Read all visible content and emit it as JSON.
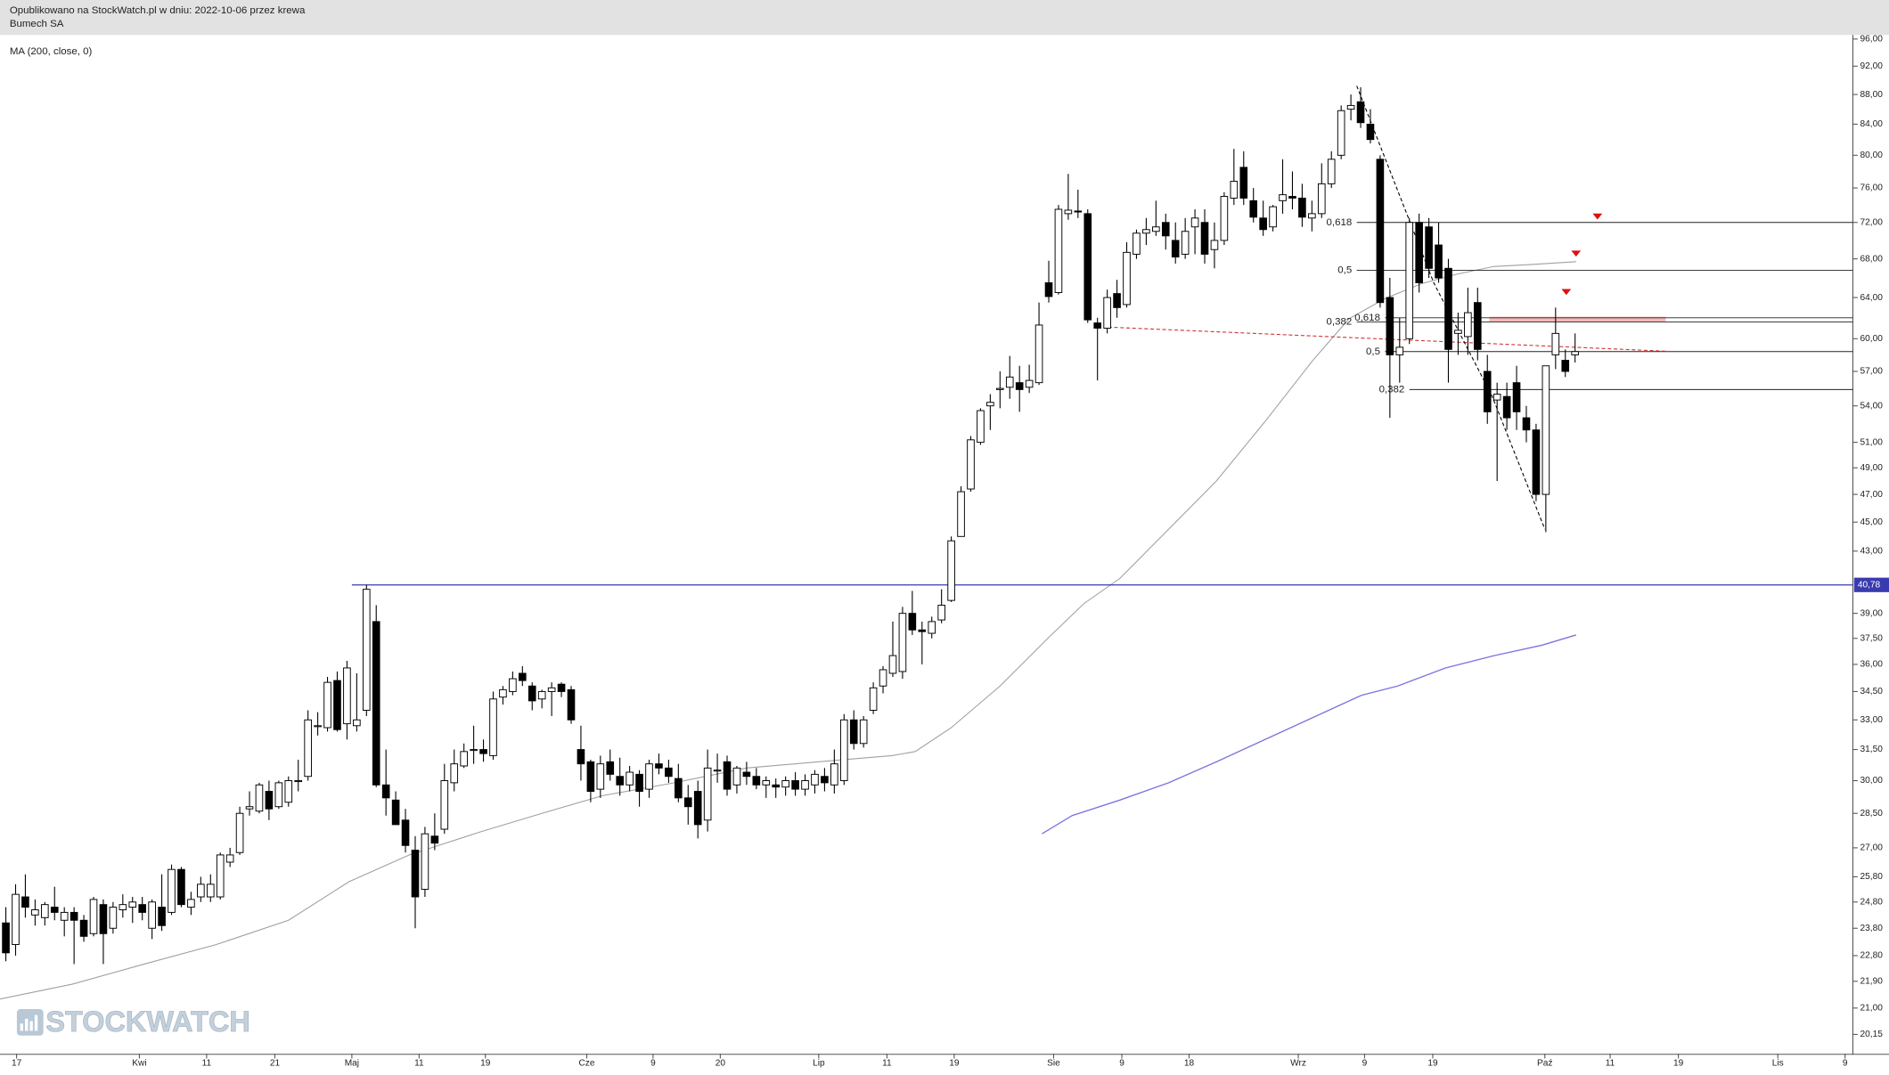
{
  "chart_data": {
    "type": "candlestick",
    "title": "Opublikowano na StockWatch.pl w dniu: 2022-10-06 przez krewa",
    "subtitle": "Bumech SA",
    "watermark": "STOCKWATCH",
    "log_scale": true,
    "up_color": "#ffffff",
    "down_color": "#000000",
    "xlim": [
      -0.6,
      189.5
    ],
    "ylim": [
      19.55,
      96.8
    ],
    "xticks": [
      {
        "value": 1.1,
        "label": "17"
      },
      {
        "value": 13.7,
        "label": "Kwi"
      },
      {
        "value": 20.6,
        "label": "11"
      },
      {
        "value": 27.6,
        "label": "21"
      },
      {
        "value": 35.5,
        "label": "Maj"
      },
      {
        "value": 42.4,
        "label": "11"
      },
      {
        "value": 49.2,
        "label": "19"
      },
      {
        "value": 59.6,
        "label": "Cze"
      },
      {
        "value": 66.4,
        "label": "9"
      },
      {
        "value": 73.3,
        "label": "20"
      },
      {
        "value": 83.4,
        "label": "Lip"
      },
      {
        "value": 90.4,
        "label": "11"
      },
      {
        "value": 97.3,
        "label": "19"
      },
      {
        "value": 107.5,
        "label": "Sie"
      },
      {
        "value": 114.5,
        "label": "9"
      },
      {
        "value": 121.4,
        "label": "18"
      },
      {
        "value": 132.6,
        "label": "Wrz"
      },
      {
        "value": 139.4,
        "label": "9"
      },
      {
        "value": 146.4,
        "label": "19"
      },
      {
        "value": 157.9,
        "label": "Paź"
      },
      {
        "value": 164.6,
        "label": "11"
      },
      {
        "value": 171.6,
        "label": "19"
      },
      {
        "value": 181.8,
        "label": "Lis"
      },
      {
        "value": 188.7,
        "label": "9"
      }
    ],
    "yticks": [
      {
        "value": 96,
        "label": "96,00"
      },
      {
        "value": 92,
        "label": "92,00"
      },
      {
        "value": 88,
        "label": "88,00"
      },
      {
        "value": 84,
        "label": "84,00"
      },
      {
        "value": 80,
        "label": "80,00"
      },
      {
        "value": 76,
        "label": "76,00"
      },
      {
        "value": 72,
        "label": "72,00"
      },
      {
        "value": 68,
        "label": "68,00"
      },
      {
        "value": 64,
        "label": "64,00"
      },
      {
        "value": 60,
        "label": "60,00"
      },
      {
        "value": 57,
        "label": "57,00"
      },
      {
        "value": 54,
        "label": "54,00"
      },
      {
        "value": 51,
        "label": "51,00"
      },
      {
        "value": 49,
        "label": "49,00"
      },
      {
        "value": 47,
        "label": "47,00"
      },
      {
        "value": 45,
        "label": "45,00"
      },
      {
        "value": 43,
        "label": "43,00"
      },
      {
        "value": 39,
        "label": "39,00"
      },
      {
        "value": 37.5,
        "label": "37,50"
      },
      {
        "value": 36,
        "label": "36,00"
      },
      {
        "value": 34.5,
        "label": "34,50"
      },
      {
        "value": 33,
        "label": "33,00"
      },
      {
        "value": 31.5,
        "label": "31,50"
      },
      {
        "value": 30,
        "label": "30,00"
      },
      {
        "value": 28.5,
        "label": "28,50"
      },
      {
        "value": 27,
        "label": "27,00"
      },
      {
        "value": 25.8,
        "label": "25,80"
      },
      {
        "value": 24.8,
        "label": "24,80"
      },
      {
        "value": 23.8,
        "label": "23,80"
      },
      {
        "value": 22.8,
        "label": "22,80"
      },
      {
        "value": 21.9,
        "label": "21,90"
      },
      {
        "value": 21,
        "label": "21,00"
      },
      {
        "value": 20.15,
        "label": "20,15"
      }
    ],
    "candles": [
      [
        24.0,
        24.6,
        22.6,
        22.9
      ],
      [
        23.2,
        25.5,
        22.8,
        25.1
      ],
      [
        25.0,
        25.9,
        24.2,
        24.6
      ],
      [
        24.3,
        24.9,
        23.9,
        24.5
      ],
      [
        24.2,
        24.8,
        23.9,
        24.7
      ],
      [
        24.6,
        25.4,
        24.1,
        24.4
      ],
      [
        24.1,
        24.6,
        23.5,
        24.4
      ],
      [
        24.4,
        24.6,
        22.5,
        24.1
      ],
      [
        24.1,
        24.3,
        23.3,
        23.5
      ],
      [
        23.6,
        25.0,
        23.5,
        24.9
      ],
      [
        24.7,
        24.9,
        22.5,
        23.6
      ],
      [
        23.8,
        24.8,
        23.6,
        24.6
      ],
      [
        24.5,
        25.1,
        24.2,
        24.7
      ],
      [
        24.6,
        25.0,
        24.0,
        24.8
      ],
      [
        24.7,
        25.0,
        24.1,
        24.4
      ],
      [
        23.8,
        24.9,
        23.4,
        24.8
      ],
      [
        24.6,
        25.9,
        23.7,
        23.9
      ],
      [
        24.4,
        26.3,
        24.3,
        26.1
      ],
      [
        26.1,
        26.2,
        24.6,
        24.7
      ],
      [
        24.6,
        25.2,
        24.3,
        24.9
      ],
      [
        25.0,
        25.8,
        24.8,
        25.5
      ],
      [
        25.0,
        25.9,
        24.8,
        25.5
      ],
      [
        25.0,
        26.8,
        24.9,
        26.7
      ],
      [
        26.4,
        27.0,
        26.2,
        26.7
      ],
      [
        26.8,
        28.8,
        26.7,
        28.5
      ],
      [
        28.7,
        29.5,
        28.4,
        28.8
      ],
      [
        28.6,
        29.9,
        28.5,
        29.8
      ],
      [
        29.5,
        30.0,
        28.2,
        28.7
      ],
      [
        28.8,
        30.0,
        28.7,
        29.9
      ],
      [
        29.0,
        30.2,
        28.8,
        30.0
      ],
      [
        30.0,
        31.0,
        29.5,
        30.0
      ],
      [
        30.2,
        33.5,
        30.0,
        33.0
      ],
      [
        32.7,
        33.4,
        32.2,
        32.7
      ],
      [
        32.6,
        35.3,
        32.4,
        35.0
      ],
      [
        35.1,
        35.6,
        32.4,
        32.5
      ],
      [
        32.8,
        36.2,
        32.0,
        35.8
      ],
      [
        32.7,
        35.5,
        32.4,
        33.0
      ],
      [
        33.5,
        40.78,
        33.2,
        40.5
      ],
      [
        38.5,
        39.5,
        29.7,
        29.8
      ],
      [
        29.8,
        31.5,
        28.4,
        29.2
      ],
      [
        29.1,
        29.5,
        28.0,
        28.0
      ],
      [
        28.2,
        28.7,
        26.8,
        27.1
      ],
      [
        26.9,
        27.5,
        23.8,
        25.0
      ],
      [
        25.3,
        27.9,
        25.0,
        27.6
      ],
      [
        27.5,
        28.5,
        26.9,
        27.2
      ],
      [
        27.8,
        30.8,
        27.6,
        30.0
      ],
      [
        29.9,
        31.5,
        29.5,
        30.8
      ],
      [
        30.7,
        31.8,
        30.6,
        31.4
      ],
      [
        31.5,
        32.7,
        30.8,
        31.5
      ],
      [
        31.5,
        32.0,
        30.9,
        31.3
      ],
      [
        31.2,
        34.5,
        31.0,
        34.1
      ],
      [
        34.2,
        34.8,
        33.8,
        34.6
      ],
      [
        34.5,
        35.6,
        34.3,
        35.2
      ],
      [
        35.5,
        35.9,
        34.8,
        35.1
      ],
      [
        34.8,
        35.0,
        33.5,
        34.0
      ],
      [
        34.1,
        34.6,
        33.6,
        34.5
      ],
      [
        34.5,
        35.0,
        33.2,
        34.7
      ],
      [
        34.9,
        35.0,
        34.2,
        34.5
      ],
      [
        34.6,
        34.8,
        32.8,
        33.0
      ],
      [
        31.5,
        32.7,
        30.0,
        30.8
      ],
      [
        30.9,
        31.0,
        29.0,
        29.5
      ],
      [
        29.6,
        31.2,
        29.2,
        30.8
      ],
      [
        30.9,
        31.5,
        30.0,
        30.3
      ],
      [
        30.2,
        31.1,
        29.3,
        29.8
      ],
      [
        29.8,
        30.7,
        29.5,
        30.4
      ],
      [
        30.3,
        30.5,
        28.8,
        29.5
      ],
      [
        29.6,
        31.0,
        29.2,
        30.8
      ],
      [
        30.8,
        31.3,
        30.3,
        30.6
      ],
      [
        30.6,
        31.0,
        29.9,
        30.2
      ],
      [
        30.1,
        30.8,
        29.0,
        29.2
      ],
      [
        29.2,
        29.8,
        28.0,
        28.8
      ],
      [
        29.5,
        30.0,
        27.4,
        28.0
      ],
      [
        28.2,
        31.5,
        27.7,
        30.6
      ],
      [
        30.5,
        31.3,
        29.9,
        30.5
      ],
      [
        30.9,
        31.2,
        29.3,
        29.6
      ],
      [
        29.8,
        30.7,
        29.4,
        30.6
      ],
      [
        30.4,
        30.9,
        29.8,
        30.2
      ],
      [
        30.2,
        30.6,
        29.6,
        29.8
      ],
      [
        29.8,
        30.2,
        29.2,
        30.0
      ],
      [
        29.8,
        30.1,
        29.2,
        29.7
      ],
      [
        29.7,
        30.2,
        29.3,
        30.0
      ],
      [
        30.0,
        30.4,
        29.3,
        29.6
      ],
      [
        29.6,
        30.3,
        29.3,
        30.0
      ],
      [
        29.8,
        30.5,
        29.4,
        30.3
      ],
      [
        30.2,
        30.6,
        29.5,
        29.9
      ],
      [
        29.8,
        31.5,
        29.4,
        30.8
      ],
      [
        30.0,
        33.3,
        29.8,
        33.0
      ],
      [
        33.0,
        33.5,
        31.5,
        31.8
      ],
      [
        31.8,
        33.2,
        31.6,
        33.0
      ],
      [
        33.5,
        35.0,
        33.3,
        34.7
      ],
      [
        34.8,
        35.9,
        34.4,
        35.7
      ],
      [
        35.5,
        38.5,
        35.3,
        36.5
      ],
      [
        35.6,
        39.4,
        35.2,
        39.0
      ],
      [
        39.0,
        40.4,
        37.7,
        38.0
      ],
      [
        38.0,
        38.5,
        36.0,
        37.9
      ],
      [
        37.8,
        38.8,
        37.5,
        38.5
      ],
      [
        38.6,
        40.5,
        38.4,
        39.5
      ],
      [
        39.8,
        44.0,
        39.7,
        43.7
      ],
      [
        44.0,
        47.6,
        44.0,
        47.2
      ],
      [
        47.4,
        51.5,
        47.2,
        51.2
      ],
      [
        51.0,
        53.8,
        50.8,
        53.6
      ],
      [
        54.0,
        55.0,
        52.0,
        54.3
      ],
      [
        55.4,
        57.0,
        53.8,
        55.5
      ],
      [
        55.6,
        58.4,
        54.6,
        56.5
      ],
      [
        56.0,
        57.5,
        53.5,
        55.4
      ],
      [
        55.6,
        57.6,
        55.1,
        56.2
      ],
      [
        56.0,
        63.5,
        55.8,
        61.3
      ],
      [
        65.5,
        67.8,
        63.5,
        64.1
      ],
      [
        64.5,
        74.0,
        64.3,
        73.5
      ],
      [
        73.0,
        77.7,
        72.3,
        73.4
      ],
      [
        73.3,
        75.8,
        72.5,
        73.2
      ],
      [
        73.0,
        73.5,
        61.5,
        61.8
      ],
      [
        61.5,
        62.0,
        56.2,
        61.0
      ],
      [
        61.0,
        64.8,
        60.5,
        64.0
      ],
      [
        64.4,
        65.8,
        62.0,
        63.0
      ],
      [
        63.3,
        69.8,
        63.0,
        68.7
      ],
      [
        68.5,
        71.2,
        68.0,
        70.8
      ],
      [
        70.8,
        72.5,
        69.5,
        71.2
      ],
      [
        71.0,
        74.5,
        70.5,
        71.5
      ],
      [
        72.0,
        73.0,
        69.0,
        70.5
      ],
      [
        70.0,
        72.0,
        67.5,
        68.2
      ],
      [
        68.5,
        72.5,
        68.0,
        71.0
      ],
      [
        71.5,
        73.5,
        68.5,
        72.5
      ],
      [
        72.0,
        73.5,
        67.5,
        68.5
      ],
      [
        69.0,
        72.0,
        67.0,
        70.0
      ],
      [
        70.0,
        75.5,
        69.5,
        75.0
      ],
      [
        74.8,
        80.8,
        74.0,
        76.8
      ],
      [
        78.5,
        80.5,
        74.0,
        74.8
      ],
      [
        74.5,
        76.0,
        72.0,
        72.6
      ],
      [
        72.5,
        74.5,
        70.5,
        71.2
      ],
      [
        71.5,
        74.0,
        71.0,
        73.8
      ],
      [
        74.5,
        79.5,
        73.0,
        75.2
      ],
      [
        75.0,
        78.0,
        73.5,
        74.8
      ],
      [
        74.8,
        76.5,
        71.5,
        72.6
      ],
      [
        72.5,
        74.5,
        71.0,
        73.0
      ],
      [
        73.0,
        79.0,
        72.5,
        76.5
      ],
      [
        76.5,
        80.5,
        76.0,
        79.5
      ],
      [
        80.0,
        86.5,
        79.5,
        85.8
      ],
      [
        86.0,
        88.0,
        84.5,
        86.5
      ],
      [
        87.0,
        89.0,
        83.5,
        84.2
      ],
      [
        84.0,
        86.0,
        81.5,
        82.0
      ],
      [
        79.5,
        80.0,
        63.0,
        63.5
      ],
      [
        64.0,
        66.0,
        53.0,
        58.5
      ],
      [
        58.5,
        62.0,
        56.0,
        59.2
      ],
      [
        60.0,
        72.5,
        59.5,
        72.0
      ],
      [
        72.0,
        73.0,
        64.5,
        65.5
      ],
      [
        71.5,
        72.5,
        66.0,
        67.0
      ],
      [
        69.5,
        72.0,
        65.5,
        66.0
      ],
      [
        67.0,
        68.0,
        56.0,
        59.0
      ],
      [
        60.5,
        62.5,
        58.5,
        60.8
      ],
      [
        60.2,
        65.0,
        58.5,
        62.5
      ],
      [
        63.5,
        65.0,
        58.0,
        59.0
      ],
      [
        57.0,
        58.5,
        52.5,
        53.5
      ],
      [
        54.5,
        56.0,
        48.0,
        55.0
      ],
      [
        54.8,
        56.0,
        52.0,
        53.0
      ],
      [
        56.0,
        57.5,
        52.0,
        53.5
      ],
      [
        53.0,
        54.0,
        51.0,
        52.0
      ],
      [
        52.0,
        52.5,
        46.5,
        47.0
      ],
      [
        47.0,
        57.5,
        44.3,
        57.5
      ],
      [
        58.5,
        63.0,
        57.2,
        60.5
      ],
      [
        58.0,
        59.0,
        56.5,
        57.0
      ],
      [
        58.5,
        60.5,
        57.8,
        58.8
      ]
    ],
    "series": [
      {
        "name": "MA (200, close, 0)",
        "color": "#7b74e0",
        "x": [
          106.3,
          109.4,
          114.3,
          119.3,
          124.2,
          129.2,
          135.3,
          139.1,
          142.8,
          147.7,
          152.7,
          157.6,
          161.1
        ],
        "values": [
          27.6,
          28.4,
          29.1,
          29.9,
          30.9,
          32.0,
          33.4,
          34.3,
          34.8,
          35.8,
          36.5,
          37.1,
          37.7
        ]
      }
    ],
    "overlays": [
      {
        "color": "#a0a0a0",
        "x": [
          -0.6,
          6.8,
          14.2,
          21.6,
          29.0,
          35.2,
          41.4,
          48.8,
          55.0,
          61.2,
          68.6,
          76.0,
          83.4,
          90.9,
          93.3,
          97.0,
          102.0,
          106.9,
          110.6,
          114.3,
          119.3,
          124.2,
          129.2,
          134.1,
          137.8,
          141.5,
          145.2,
          148.9,
          152.7,
          156.4,
          161.1
        ],
        "values": [
          21.3,
          21.8,
          22.5,
          23.2,
          24.1,
          25.6,
          26.7,
          27.7,
          28.5,
          29.3,
          29.9,
          30.6,
          30.9,
          31.2,
          31.4,
          32.6,
          34.8,
          37.5,
          39.6,
          41.2,
          44.5,
          48.0,
          52.7,
          58.0,
          61.9,
          63.9,
          65.4,
          66.4,
          67.2,
          67.4,
          67.7
        ]
      }
    ],
    "hline": {
      "value": 40.78,
      "label": "40,78",
      "color": "#3a3ab0",
      "x_start": 35.5
    },
    "fib_levels": [
      {
        "label": "0,618",
        "value": 72.0,
        "x_start": 138.6
      },
      {
        "label": "0,5",
        "value": 66.8,
        "x_start": 138.6
      },
      {
        "label": "0,382",
        "value": 61.6,
        "x_start": 138.6
      },
      {
        "label": "0,618",
        "value": 62.0,
        "x_start": 141.5
      },
      {
        "label": "0,5",
        "value": 58.8,
        "x_start": 141.5
      },
      {
        "label": "0,382",
        "value": 55.4,
        "x_start": 144.0
      }
    ],
    "zone": {
      "color": "#f4b8b8",
      "x": [
        152.2,
        170.3
      ],
      "values": [
        62.1,
        61.6
      ]
    },
    "trend_line": {
      "color": "#d03030",
      "x": [
        113.1,
        171.2
      ],
      "values": [
        61.1,
        58.8
      ]
    },
    "zigzag": {
      "color": "#000000",
      "x": [
        138.6,
        146.5,
        152.5,
        157.9
      ],
      "values": [
        89.2,
        65.5,
        54.8,
        44.5
      ]
    },
    "markers": {
      "color": "#e01010",
      "x": [
        163.3,
        161.1,
        160.1
      ],
      "values": [
        72.6,
        68.5,
        64.5
      ]
    }
  }
}
